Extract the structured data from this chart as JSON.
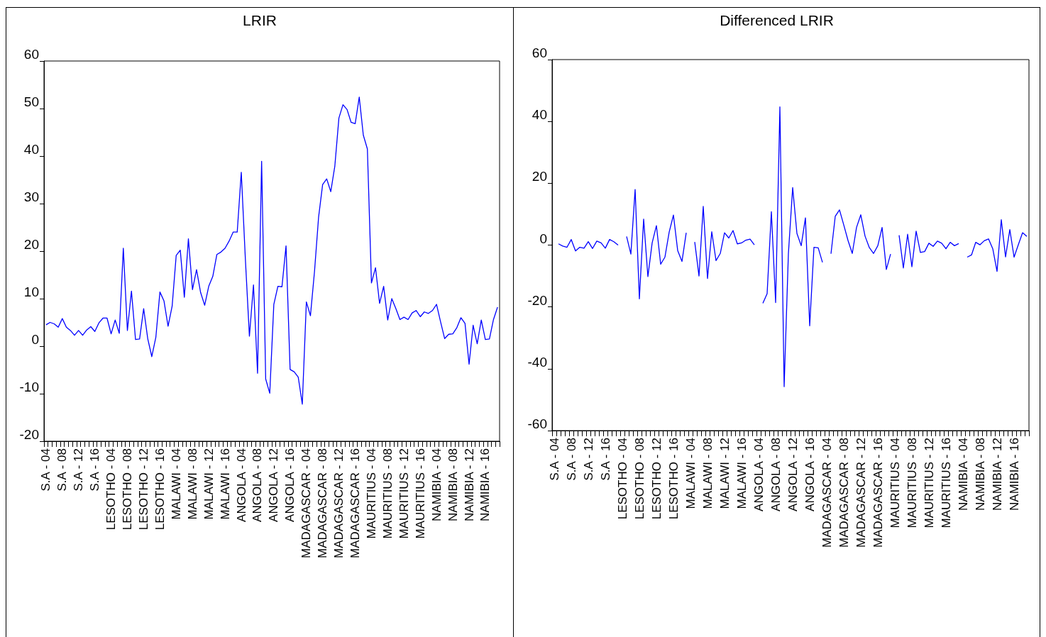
{
  "chart_data": [
    {
      "type": "line",
      "title": "LRIR",
      "categories": [
        "S.A - 04",
        null,
        null,
        null,
        "S.A - 08",
        null,
        null,
        null,
        "S.A - 12",
        null,
        null,
        null,
        "S.A - 16",
        null,
        null,
        null,
        "LESOTHO - 04",
        null,
        null,
        null,
        "LESOTHO - 08",
        null,
        null,
        null,
        "LESOTHO - 12",
        null,
        null,
        null,
        "LESOTHO - 16",
        null,
        null,
        null,
        "MALAWI - 04",
        null,
        null,
        null,
        "MALAWI - 08",
        null,
        null,
        null,
        "MALAWI - 12",
        null,
        null,
        null,
        "MALAWI - 16",
        null,
        null,
        null,
        "ANGOLA - 04",
        null,
        null,
        null,
        "ANGOLA - 08",
        null,
        null,
        null,
        "ANGOLA - 12",
        null,
        null,
        null,
        "ANGOLA - 16",
        null,
        null,
        null,
        "MADAGASCAR - 04",
        null,
        null,
        null,
        "MADAGASCAR - 08",
        null,
        null,
        null,
        "MADAGASCAR - 12",
        null,
        null,
        null,
        "MADAGASCAR - 16",
        null,
        null,
        null,
        "MAURITIUS - 04",
        null,
        null,
        null,
        "MAURITIUS - 08",
        null,
        null,
        null,
        "MAURITIUS - 12",
        null,
        null,
        null,
        "MAURITIUS - 16",
        null,
        null,
        null,
        "NAMIBIA - 04",
        null,
        null,
        null,
        "NAMIBIA - 08",
        null,
        null,
        null,
        "NAMIBIA - 12",
        null,
        null,
        null,
        "NAMIBIA - 16",
        null,
        null,
        null
      ],
      "series": [
        {
          "color": "#0000ff",
          "values": [
            4.5,
            5.0,
            4.7,
            4.0,
            5.8,
            4.0,
            3.3,
            2.3,
            3.3,
            2.3,
            3.4,
            4.1,
            3.1,
            4.9,
            5.9,
            5.9,
            2.6,
            5.5,
            2.7,
            20.6,
            3.3,
            11.6,
            1.4,
            1.5,
            7.9,
            1.6,
            -2.2,
            1.9,
            11.4,
            9.5,
            4.2,
            8.4,
            19.1,
            20.2,
            10.3,
            22.6,
            11.9,
            16.1,
            11.3,
            8.6,
            12.6,
            14.7,
            19.3,
            19.8,
            20.6,
            22.1,
            24.0,
            24.0,
            36.6,
            18.4,
            2.1,
            12.9,
            -5.7,
            38.9,
            -6.9,
            -9.9,
            8.8,
            12.6,
            12.5,
            21.1,
            -4.9,
            -5.4,
            -6.5,
            -12.2,
            9.3,
            6.4,
            15.7,
            27.1,
            34.0,
            35.2,
            32.5,
            37.9,
            48.0,
            50.8,
            49.8,
            47.1,
            46.8,
            52.4,
            44.4,
            41.5,
            13.3,
            16.5,
            9.0,
            12.6,
            5.5,
            10.0,
            7.9,
            5.6,
            6.1,
            5.6,
            7.0,
            7.5,
            6.2,
            7.2,
            6.9,
            7.5,
            8.8,
            5.1,
            1.6,
            2.5,
            2.6,
            3.9,
            6.0,
            4.8,
            -3.8,
            4.4,
            0.5,
            5.5,
            1.4,
            1.5,
            5.6,
            8.2
          ]
        }
      ],
      "ylim": [
        -20,
        60
      ],
      "yticks": [
        -20,
        -10,
        0,
        10,
        20,
        30,
        40,
        50,
        60
      ]
    },
    {
      "type": "line",
      "title": "Differenced LRIR",
      "categories": [
        "S.A - 04",
        null,
        null,
        null,
        "S.A - 08",
        null,
        null,
        null,
        "S.A - 12",
        null,
        null,
        null,
        "S.A - 16",
        null,
        null,
        null,
        "LESOTHO - 04",
        null,
        null,
        null,
        "LESOTHO - 08",
        null,
        null,
        null,
        "LESOTHO - 12",
        null,
        null,
        null,
        "LESOTHO - 16",
        null,
        null,
        null,
        "MALAWI - 04",
        null,
        null,
        null,
        "MALAWI - 08",
        null,
        null,
        null,
        "MALAWI - 12",
        null,
        null,
        null,
        "MALAWI - 16",
        null,
        null,
        null,
        "ANGOLA - 04",
        null,
        null,
        null,
        "ANGOLA - 08",
        null,
        null,
        null,
        "ANGOLA - 12",
        null,
        null,
        null,
        "ANGOLA - 16",
        null,
        null,
        null,
        "MADAGASCAR - 04",
        null,
        null,
        null,
        "MADAGASCAR - 08",
        null,
        null,
        null,
        "MADAGASCAR - 12",
        null,
        null,
        null,
        "MADAGASCAR - 16",
        null,
        null,
        null,
        "MAURITIUS - 04",
        null,
        null,
        null,
        "MAURITIUS - 08",
        null,
        null,
        null,
        "MAURITIUS - 12",
        null,
        null,
        null,
        "MAURITIUS - 16",
        null,
        null,
        null,
        "NAMIBIA - 04",
        null,
        null,
        null,
        "NAMIBIA - 08",
        null,
        null,
        null,
        "NAMIBIA - 12",
        null,
        null,
        null,
        "NAMIBIA - 16",
        null,
        null,
        null
      ],
      "series": [
        {
          "color": "#0000ff",
          "values": [
            null,
            0.4,
            -0.3,
            -0.7,
            1.8,
            -1.9,
            -0.7,
            -1.0,
            1.1,
            -1.1,
            1.3,
            0.7,
            -1.0,
            1.8,
            1.1,
            0.0,
            null,
            2.8,
            -2.9,
            18.0,
            -17.4,
            8.4,
            -10.2,
            0.7,
            6.3,
            -6.2,
            -3.9,
            4.2,
            9.7,
            -1.8,
            -5.3,
            4.0,
            null,
            1.0,
            -10.0,
            12.5,
            -10.8,
            4.3,
            -5.0,
            -2.7,
            4.0,
            2.3,
            4.7,
            0.4,
            0.7,
            1.6,
            1.9,
            0.1,
            null,
            -18.8,
            -15.7,
            10.8,
            -18.6,
            44.7,
            -45.8,
            -2.7,
            18.6,
            3.8,
            -0.2,
            8.8,
            -26.1,
            -0.7,
            -0.9,
            -5.6,
            null,
            -2.8,
            9.3,
            11.4,
            6.5,
            1.5,
            -2.7,
            5.7,
            9.8,
            2.9,
            -0.8,
            -2.7,
            -0.2,
            5.7,
            -7.9,
            -2.9,
            null,
            3.2,
            -7.4,
            3.5,
            -7.0,
            4.5,
            -2.4,
            -2.1,
            0.6,
            -0.4,
            1.3,
            0.6,
            -1.2,
            0.9,
            -0.2,
            0.5,
            null,
            -3.9,
            -3.2,
            0.9,
            0.1,
            1.4,
            2.0,
            -1.2,
            -8.5,
            8.2,
            -3.8,
            5.0,
            -3.9,
            0.1,
            4.0,
            2.8
          ]
        }
      ],
      "ylim": [
        -60,
        60
      ],
      "yticks": [
        -60,
        -40,
        -20,
        0,
        20,
        40,
        60
      ]
    }
  ]
}
